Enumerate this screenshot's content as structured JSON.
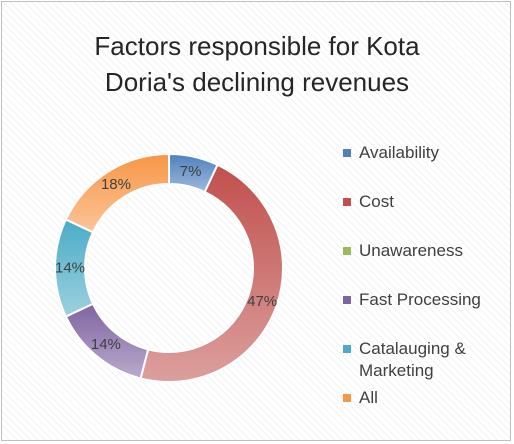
{
  "chart_data": {
    "type": "pie",
    "style": "doughnut",
    "title_lines": [
      "Factors responsible for  Kota",
      "Doria's declining revenues"
    ],
    "categories": [
      "Availability",
      "Cost",
      "Unawareness",
      "Fast Processing",
      "Catalauging & Marketing",
      "All"
    ],
    "legend_lines": [
      [
        "Availability"
      ],
      [
        "Cost"
      ],
      [
        "Unawareness"
      ],
      [
        "Fast Processing"
      ],
      [
        "Catalauging &",
        "Marketing"
      ],
      [
        "All"
      ]
    ],
    "values": [
      7,
      47,
      0,
      14,
      14,
      18
    ],
    "data_labels": [
      "7%",
      "47%",
      "",
      "14%",
      "14%",
      "18%"
    ],
    "unit": "%",
    "colors": [
      "#4f81bd",
      "#c0504d",
      "#9bbb59",
      "#8064a2",
      "#4bacc6",
      "#f79646"
    ],
    "legend_position": "right",
    "grid": false
  }
}
